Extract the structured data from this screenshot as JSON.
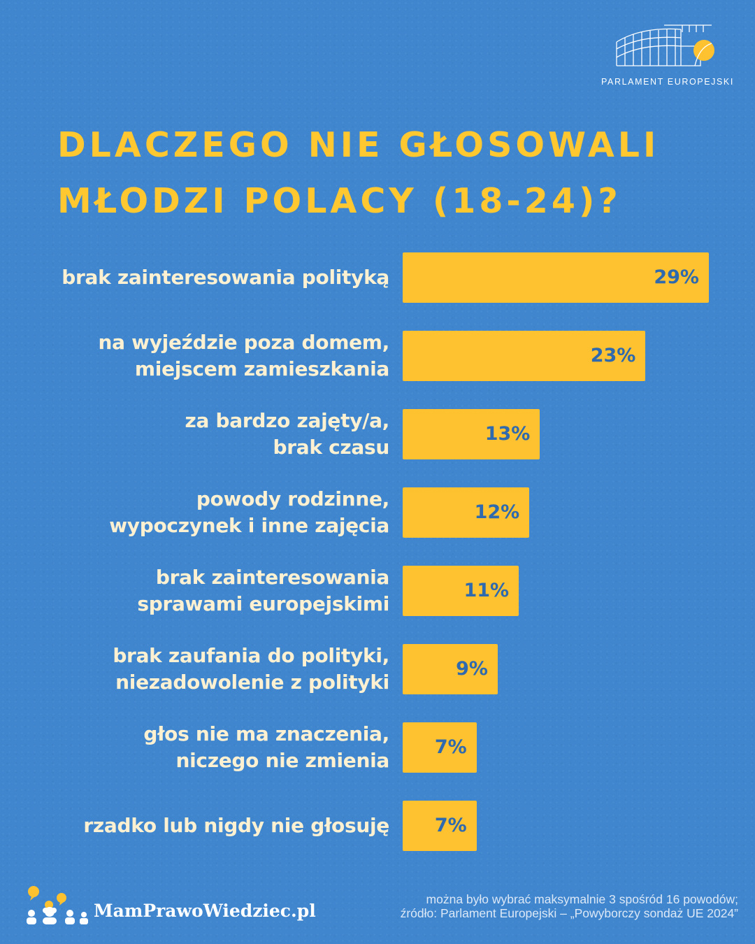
{
  "logo": {
    "text": "PARLAMENT EUROPEJSKI"
  },
  "title": {
    "line1": "DLACZEGO NIE GŁOSOWALI",
    "line2": "MŁODZI POLACY (18-24)?"
  },
  "colors": {
    "background": "#3f86cf",
    "accent": "#fec12f",
    "title": "#ffc730",
    "label": "#fdf1d2",
    "value_text": "#2f6aae"
  },
  "chart_data": {
    "type": "bar",
    "orientation": "horizontal",
    "categories": [
      [
        "brak zainteresowania polityką"
      ],
      [
        "na wyjeździe poza domem,",
        "miejscem zamieszkania"
      ],
      [
        "za bardzo zajęty/a,",
        "brak czasu"
      ],
      [
        "powody rodzinne,",
        "wypoczynek i inne zajęcia"
      ],
      [
        "brak zainteresowania",
        "sprawami europejskimi"
      ],
      [
        "brak zaufania do polityki,",
        "niezadowolenie z polityki"
      ],
      [
        "głos nie ma znaczenia,",
        "niczego nie zmienia"
      ],
      [
        "rzadko lub nigdy nie głosuję"
      ]
    ],
    "values": [
      29,
      23,
      13,
      12,
      11,
      9,
      7,
      7
    ],
    "value_labels": [
      "29%",
      "23%",
      "13%",
      "12%",
      "11%",
      "9%",
      "7%",
      "7%"
    ],
    "unit": "%",
    "xlim": [
      0,
      29
    ],
    "grid": false
  },
  "footer": {
    "brand": "MamPrawoWiedziec.pl",
    "note_line1": "można było wybrać maksymalnie 3 spośród 16 powodów;",
    "note_line2": "źródło: Parlament Europejski – „Powyborczy sondaż UE 2024”"
  }
}
